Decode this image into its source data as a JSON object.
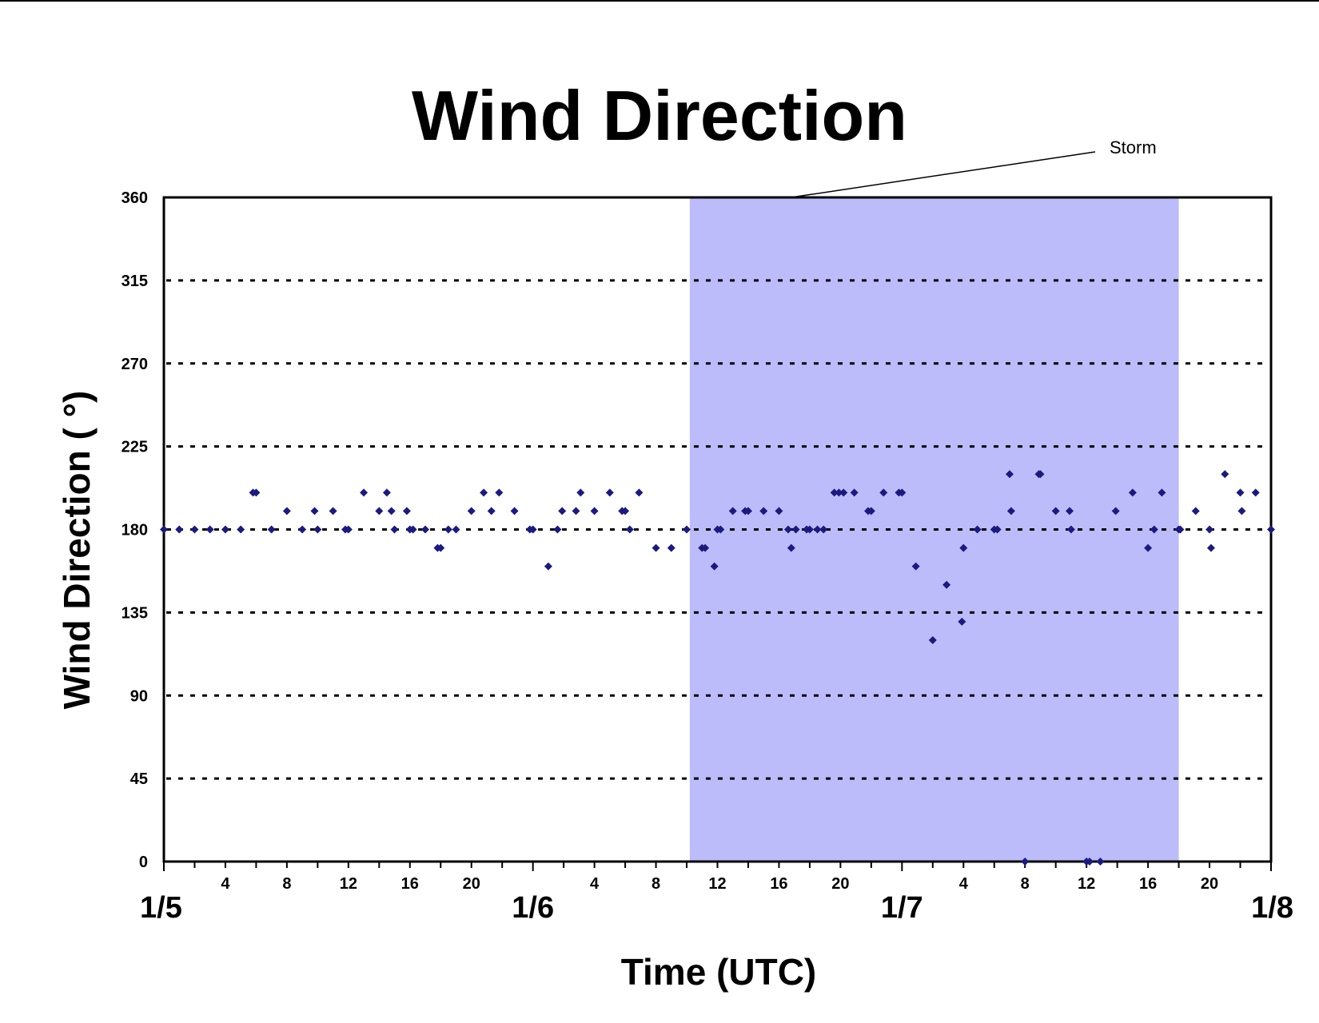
{
  "chart_data": {
    "type": "scatter",
    "title": "Wind Direction",
    "xlabel": "Time (UTC)",
    "ylabel": "Wind Direction ( °)",
    "ylim": [
      0,
      360
    ],
    "yticks": [
      "0",
      "45",
      "90",
      "135",
      "180",
      "225",
      "270",
      "315",
      "360"
    ],
    "y_gridlines": [
      45,
      90,
      135,
      180,
      225,
      270,
      315
    ],
    "grid": "horizontal dotted",
    "x_range_hours": [
      0,
      72
    ],
    "x_hour_ticks": [
      {
        "hour": 4,
        "label": "4"
      },
      {
        "hour": 8,
        "label": "8"
      },
      {
        "hour": 12,
        "label": "12"
      },
      {
        "hour": 16,
        "label": "16"
      },
      {
        "hour": 20,
        "label": "20"
      },
      {
        "hour": 28,
        "label": "4"
      },
      {
        "hour": 32,
        "label": "8"
      },
      {
        "hour": 36,
        "label": "12"
      },
      {
        "hour": 40,
        "label": "16"
      },
      {
        "hour": 44,
        "label": "20"
      },
      {
        "hour": 52,
        "label": "4"
      },
      {
        "hour": 56,
        "label": "8"
      },
      {
        "hour": 60,
        "label": "12"
      },
      {
        "hour": 64,
        "label": "16"
      },
      {
        "hour": 68,
        "label": "20"
      }
    ],
    "x_day_ticks": [
      {
        "hour": 0,
        "label": "1/5"
      },
      {
        "hour": 24,
        "label": "1/6"
      },
      {
        "hour": 48,
        "label": "1/7"
      },
      {
        "hour": 72,
        "label": "1/8"
      }
    ],
    "shaded_region": {
      "label": "Storm",
      "start_hour": 34.2,
      "end_hour": 66.0,
      "color": "#bcbcfa"
    },
    "marker_color": "#1a1a80",
    "points": [
      [
        0,
        180
      ],
      [
        1,
        180
      ],
      [
        2,
        180
      ],
      [
        3,
        180
      ],
      [
        4,
        180
      ],
      [
        5,
        180
      ],
      [
        5.8,
        200
      ],
      [
        6,
        200
      ],
      [
        7,
        180
      ],
      [
        8,
        190
      ],
      [
        9,
        180
      ],
      [
        9.8,
        190
      ],
      [
        10,
        180
      ],
      [
        11,
        190
      ],
      [
        11.8,
        180
      ],
      [
        12,
        180
      ],
      [
        13,
        200
      ],
      [
        14,
        190
      ],
      [
        14.5,
        200
      ],
      [
        14.8,
        190
      ],
      [
        15,
        180
      ],
      [
        15.8,
        190
      ],
      [
        16,
        180
      ],
      [
        16.2,
        180
      ],
      [
        17,
        180
      ],
      [
        17.8,
        170
      ],
      [
        18,
        170
      ],
      [
        18.5,
        180
      ],
      [
        19,
        180
      ],
      [
        20,
        190
      ],
      [
        20.8,
        200
      ],
      [
        21.3,
        190
      ],
      [
        21.8,
        200
      ],
      [
        22.8,
        190
      ],
      [
        23.8,
        180
      ],
      [
        24,
        180
      ],
      [
        25,
        160
      ],
      [
        25.6,
        180
      ],
      [
        25.9,
        190
      ],
      [
        26.8,
        190
      ],
      [
        27.1,
        200
      ],
      [
        28,
        190
      ],
      [
        29,
        200
      ],
      [
        29.8,
        190
      ],
      [
        30,
        190
      ],
      [
        30.3,
        180
      ],
      [
        30.9,
        200
      ],
      [
        32,
        170
      ],
      [
        33,
        170
      ],
      [
        34,
        180
      ],
      [
        35,
        170
      ],
      [
        35.2,
        170
      ],
      [
        35.8,
        160
      ],
      [
        36,
        180
      ],
      [
        36.2,
        180
      ],
      [
        37,
        190
      ],
      [
        37.8,
        190
      ],
      [
        38,
        190
      ],
      [
        39,
        190
      ],
      [
        40,
        190
      ],
      [
        40.6,
        180
      ],
      [
        40.8,
        170
      ],
      [
        41.1,
        180
      ],
      [
        41.8,
        180
      ],
      [
        42,
        180
      ],
      [
        42.5,
        180
      ],
      [
        42.9,
        180
      ],
      [
        43.6,
        200
      ],
      [
        43.9,
        200
      ],
      [
        44.2,
        200
      ],
      [
        44.9,
        200
      ],
      [
        45.8,
        190
      ],
      [
        46,
        190
      ],
      [
        46.8,
        200
      ],
      [
        47.8,
        200
      ],
      [
        48,
        200
      ],
      [
        48.9,
        160
      ],
      [
        50,
        120
      ],
      [
        50.9,
        150
      ],
      [
        51.9,
        130
      ],
      [
        52,
        170
      ],
      [
        52.9,
        180
      ],
      [
        54,
        180
      ],
      [
        54.2,
        180
      ],
      [
        55,
        210
      ],
      [
        55.1,
        190
      ],
      [
        56,
        0
      ],
      [
        56.9,
        210
      ],
      [
        57,
        210
      ],
      [
        58,
        190
      ],
      [
        58.9,
        190
      ],
      [
        59,
        180
      ],
      [
        60,
        0
      ],
      [
        60.2,
        0
      ],
      [
        60.9,
        0
      ],
      [
        61.9,
        190
      ],
      [
        63,
        200
      ],
      [
        64,
        170
      ],
      [
        64.4,
        180
      ],
      [
        64.9,
        200
      ],
      [
        66,
        180
      ],
      [
        66.1,
        180
      ],
      [
        67.1,
        190
      ],
      [
        68,
        180
      ],
      [
        68.1,
        170
      ],
      [
        69,
        210
      ],
      [
        70,
        200
      ],
      [
        70.1,
        190
      ],
      [
        71,
        200
      ],
      [
        72,
        180
      ]
    ]
  }
}
